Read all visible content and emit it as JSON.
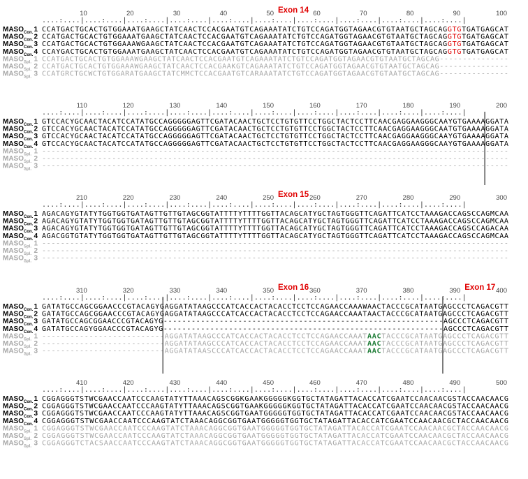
{
  "colors": {
    "consensus_text": "#000000",
    "spliced_text": "#a6a6a6",
    "exon_label": "#e00000",
    "splice_site": "#e00000",
    "stop_codon": "#1a7a33",
    "boundary_line": "#000000"
  },
  "blocks": [
    {
      "ruler": [
        "10",
        "20",
        "30",
        "40",
        "50",
        "60",
        "70",
        "80",
        "90",
        "100"
      ],
      "exon_labels": [
        {
          "text": "Exon 14",
          "after_ruler": 4
        }
      ],
      "rows": [
        {
          "prefix": "MASO",
          "sub": "Con.",
          "num": "1",
          "seq": "CCATGACTGCACTGTGGAAATGAAGCTATCAACTCCACGAATGTCAGAAATATCTGTCCAGATGGTAGAACGTGTAATGCTAGCAGGTGTGATGAGCAT",
          "hl": [
            [
              86,
              88,
              "red"
            ]
          ]
        },
        {
          "prefix": "MASO",
          "sub": "Con.",
          "num": "2",
          "seq": "CCATGACTGCACTGTGGAAATGAAGCTATCAACTCCACGAATGTCAGAAATATCTGTCCAGATGGTAGAACGTGTAATGCTAGCAGGTGTGATGAGCAT",
          "hl": [
            [
              86,
              88,
              "red"
            ]
          ]
        },
        {
          "prefix": "MASO",
          "sub": "Con.",
          "num": "3",
          "seq": "CCATGACTGCACTGTGGAAAWGAAGCTATCAACTCCACGAATGTCAGAAATATCTGTCCAGATGGTAGAACGTGTAATGCTAGCAGGTGTGATGAGCAT",
          "hl": [
            [
              86,
              88,
              "red"
            ]
          ]
        },
        {
          "prefix": "MASO",
          "sub": "Con.",
          "num": "4",
          "seq": "CCAYGACTGCACTGTGGAAATGAAGCTATCAACTCCACGAATGTCAGAAATATCTGTCCAGATGGTAGAACGTGTAATGCTAGCAGGTGTGATGAGCAT",
          "hl": [
            [
              86,
              88,
              "red"
            ]
          ]
        },
        {
          "prefix": "MASO",
          "sub": "Spl.",
          "num": "1",
          "gray": true,
          "seq": "CCATGACTGCACTGTGGAAAWGAAGCTATCAACTCCACGAATGTCAGAAATATCTGTCCAGATGGTAGAACGTGTAATGCTAGCAG---------------",
          "hl": []
        },
        {
          "prefix": "MASO",
          "sub": "Spl.",
          "num": "2",
          "gray": true,
          "seq": "CCATGACTGCACTGTGGAAAWGAAGCTATCAACTCCACGAAKGTCAGAAATATCTGTCCAGATGGTAGAACGTGTAATGCTAGCAG---------------",
          "hl": []
        },
        {
          "prefix": "MASO",
          "sub": "Spl.",
          "num": "3",
          "gray": true,
          "seq": "CCATGRCTGCWCTGTGGARATGAAGCTATCMMCTCCACGAATGTCARAAATATCTGTCCAGATGGTAGAACGTGTAATGCTAGCAG---------------",
          "hl": []
        }
      ]
    },
    {
      "ruler": [
        "110",
        "120",
        "130",
        "140",
        "150",
        "160",
        "170",
        "180",
        "190",
        "200"
      ],
      "exon_labels": [],
      "rows": [
        {
          "prefix": "MASO",
          "sub": "Con.",
          "num": "1",
          "seq": "GTCCACYGCAACTACATCCATATGCCAGGGGGAGTTCGATACAACTGCTCCTGTGTTCCTGGCTACTCCTTCAACGAGGAAGGGCAAYGTGAAAAGGATA",
          "hl": []
        },
        {
          "prefix": "MASO",
          "sub": "Con.",
          "num": "2",
          "seq": "GTCCACYGCAACTACATCCATATGCCAGGGGGAGTTCGATACAACTGCTCCTGTGTTCCTGGCTACTCCTTCAACGAGGAAGGGCAATGTGAAAAGGATA",
          "hl": []
        },
        {
          "prefix": "MASO",
          "sub": "Con.",
          "num": "3",
          "seq": "GTCCACYGCAACTACATCCATATGCCAGGGGGAGTTCGATACAACTGCTCCTGTGTTCCTGGCTACTCCTTCAACGAGGAAGGGCAAYGTGAAAAGGATA",
          "hl": []
        },
        {
          "prefix": "MASO",
          "sub": "Con.",
          "num": "4",
          "seq": "GTCCACYGCAACTACATCCATATGCCAGGGGGAGTTCGATACAACTGCTCCTGTGTTCCTGGCTACTCCTTCAACGAGGAAGGGCAAYGTGAAAAGGATA",
          "hl": []
        },
        {
          "prefix": "MASO",
          "sub": "Spl.",
          "num": "1",
          "gray": true,
          "seq": "----------------------------------------------------------------------------------------------------",
          "hl": []
        },
        {
          "prefix": "MASO",
          "sub": "Spl.",
          "num": "2",
          "gray": true,
          "seq": "----------------------------------------------------------------------------------------------------",
          "hl": []
        },
        {
          "prefix": "MASO",
          "sub": "Spl.",
          "num": "3",
          "gray": true,
          "seq": "----------------------------------------------------------------------------------------------------",
          "hl": []
        }
      ]
    },
    {
      "ruler": [
        "210",
        "220",
        "230",
        "240",
        "250",
        "260",
        "270",
        "280",
        "290",
        "300"
      ],
      "exon_labels": [
        {
          "text": "Exon 15",
          "after_ruler": 4
        }
      ],
      "rows": [
        {
          "prefix": "MASO",
          "sub": "Con.",
          "num": "1",
          "seq": "AGACAGYGTATYTGGTGGTGATAGTTGTTGTAGCGGTATTTTYTTTTGGTTACAGCATYGCTAGTGGGTTCAGATTCATCCTAAAGACCAGSCCAGMCAA",
          "hl": []
        },
        {
          "prefix": "MASO",
          "sub": "Con.",
          "num": "2",
          "seq": "AGACAGYGTATYTGGTGGTGATAGTTGTTGTAGCGGTATTTTYTTTTGGTTACAGCATYGCTAGTGGGTTCAGATTCATCCTAAAGACCAGSCCAGMCAA",
          "hl": []
        },
        {
          "prefix": "MASO",
          "sub": "Con.",
          "num": "3",
          "seq": "AGACAGYGTATYTGGTGGTGATAGTTGTTGTAGCGGTATTTTYTTTTGGTTACAGCATYGCTAGTGGGTTCAGATTCATCCTAAAGACCAGSCCAGACAA",
          "hl": []
        },
        {
          "prefix": "MASO",
          "sub": "Con.",
          "num": "4",
          "seq": "AGACGGTGTATYTGGTGGTGATAGTTGTTGTAGCGGTATTTTYTTTTGGTTACAGCATYGCTAGTGGGTTCAGATTCATCCTAAAGACCAGSCCAGMCAA",
          "hl": []
        },
        {
          "prefix": "MASO",
          "sub": "Spl.",
          "num": "1",
          "gray": true,
          "seq": "----------------------------------------------------------------------------------------------------",
          "hl": []
        },
        {
          "prefix": "MASO",
          "sub": "Spl.",
          "num": "2",
          "gray": true,
          "seq": "----------------------------------------------------------------------------------------------------",
          "hl": []
        },
        {
          "prefix": "MASO",
          "sub": "Spl.",
          "num": "3",
          "gray": true,
          "seq": "----------------------------------------------------------------------------------------------------",
          "hl": []
        }
      ]
    },
    {
      "ruler": [
        "310",
        "320",
        "330",
        "340",
        "350",
        "360",
        "370",
        "380",
        "390",
        "400"
      ],
      "exon_labels": [
        {
          "text": "Exon 16",
          "after_ruler": 4
        },
        {
          "text": "Exon 17",
          "after_ruler": 8
        }
      ],
      "rows": [
        {
          "prefix": "MASO",
          "sub": "Con.",
          "num": "1",
          "seq": "GATATGCCAGCGGAACCCGTACAGYGAGGATATAAGCCCATCACCACTACACCTCCTCCAGAACCAAAWAACTACCCGCATAATGAGCCCTCAGACGTT",
          "hl": []
        },
        {
          "prefix": "MASO",
          "sub": "Con.",
          "num": "2",
          "seq": "GATATGCCAGCGGAACCCGTACAGYGAGGATATAAGCCCATCACCACTACACCTCCTCCAGAACCAAATAACTACCCGCATAATGAGCCCTCAGACGTT",
          "hl": []
        },
        {
          "prefix": "MASO",
          "sub": "Con.",
          "num": "3",
          "seq": "GATATGCCAGCGGAACCCGTACAGYG------------------------------------------------------------AGCCCTCAGACGTT",
          "hl": []
        },
        {
          "prefix": "MASO",
          "sub": "Con.",
          "num": "4",
          "seq": "GATATGCCAGYGGAACCCGTACAGYG------------------------------------------------------------AGCCCTCAGACGTT",
          "hl": []
        },
        {
          "prefix": "MASO",
          "sub": "Spl.",
          "num": "1",
          "gray": true,
          "seq": "--------------------------AGGATATAAGCCCATCACCACTACACCTCCTCCAGAACCAAATAACTACCCGCATAATGAGCCCTCAGACGTT",
          "hl": [
            [
              69,
              71,
              "green"
            ]
          ]
        },
        {
          "prefix": "MASO",
          "sub": "Spl.",
          "num": "2",
          "gray": true,
          "seq": "--------------------------AGGATATAAGCCCATCACCACTACACCTCCTCCAGAACCAAATAACTACCCGCATAATGAGCCCTCAGACGTT",
          "hl": [
            [
              69,
              71,
              "green"
            ]
          ]
        },
        {
          "prefix": "MASO",
          "sub": "Spl.",
          "num": "3",
          "gray": true,
          "seq": "--------------------------AGGATATAASCCCATCACCACTACACCTCCTCCAGAACCAAATAACTACCCGCATAATGAGCCCTCAGACGTT",
          "hl": [
            [
              69,
              71,
              "green"
            ]
          ]
        }
      ]
    },
    {
      "ruler": [
        "410",
        "420",
        "430",
        "440",
        "450",
        "460",
        "470",
        "480",
        "490",
        "500"
      ],
      "exon_labels": [],
      "rows": [
        {
          "prefix": "MASO",
          "sub": "Con.",
          "num": "1",
          "seq": "CGGAGGGTSTWCGAACCAATCCCAAGTATYTTAAACAGSCGGKGAAKGGGGGKGGTGCTATAGATTACACCATCGAATCCAACAACGSTACCAACAACG",
          "hl": []
        },
        {
          "prefix": "MASO",
          "sub": "Con.",
          "num": "2",
          "seq": "CGGAGGGTSTWCGAACCAATCCCAAGTATYTTAAACAGSCGGTGAAKGGGGGKGGTGCTATAGATTACACCATCGAATCCAACAACGSTACCAACAACG",
          "hl": []
        },
        {
          "prefix": "MASO",
          "sub": "Con.",
          "num": "3",
          "seq": "CGGAGGGTSTWCGAACCAATCCCAAGTATYTTAAACAGSCGGTGAATGGGGGTGGTGCTATAGATTACACCATCGAATCCAACAACGSTACCAACAACG",
          "hl": []
        },
        {
          "prefix": "MASO",
          "sub": "Con.",
          "num": "4",
          "seq": "CGGAGGGTSTWCGAACCAATCCCAAGTATCTAAACAGGCGGTGAATGGGGGTGGTGCTATAGATTACACCATCGAATCCAACAACGCTACCAACAACG",
          "hl": []
        },
        {
          "prefix": "MASO",
          "sub": "Spl.",
          "num": "1",
          "gray": true,
          "seq": "CGGAGGGTSTWCGAACCAATCCCAAGTATCTAAACAGGCGGTGAATGGGGGTGGTGCTATAGATTACACCATCGAATCCAACAACGCTACCAACAACG",
          "hl": []
        },
        {
          "prefix": "MASO",
          "sub": "Spl.",
          "num": "2",
          "gray": true,
          "seq": "CGGAGGGTSTWCGAACCAATCCCAAGTATCTAAACAGGCGGTGAATGGGGGTGGTGCTATAGATTACACCATCGAATCCAACAACGCTACCAACAACG",
          "hl": []
        },
        {
          "prefix": "MASO",
          "sub": "Spl.",
          "num": "3",
          "gray": true,
          "seq": "CGGAGGGTCTACSAACCAATCCCAAGTATCTAAACAGGCGGTGAATGGGGGTGGTGCTATAGATTACACCATCGAATCCAACAACGCTACCAACAACG",
          "hl": []
        }
      ]
    }
  ]
}
